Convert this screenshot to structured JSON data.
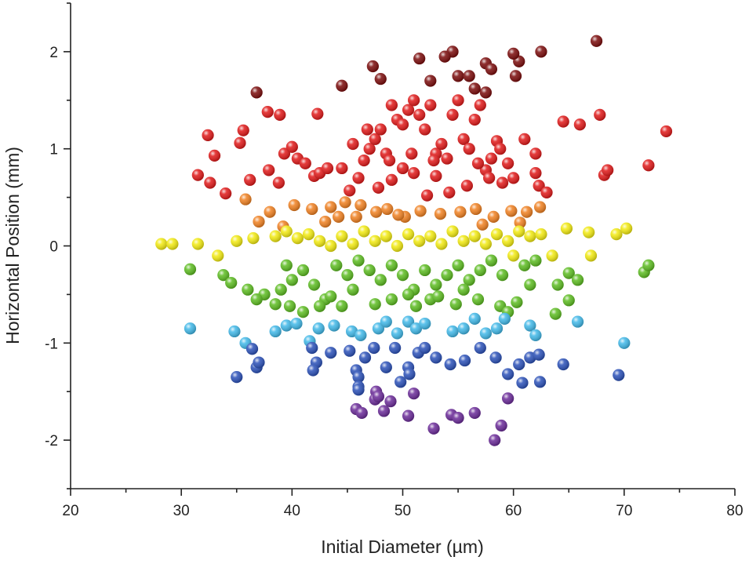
{
  "chart_data": {
    "type": "scatter",
    "title": "",
    "xlabel": "Initial Diameter (µm)",
    "ylabel": "Horizontal Position (mm)",
    "xlim": [
      20,
      80
    ],
    "ylim": [
      -2.5,
      2.5
    ],
    "x_ticks": [
      20,
      30,
      40,
      50,
      60,
      70,
      80
    ],
    "y_ticks": [
      -2,
      -1,
      0,
      1,
      2
    ],
    "x_tick_labels": [
      "20",
      "30",
      "40",
      "50",
      "60",
      "70",
      "80"
    ],
    "y_tick_labels": [
      "-2",
      "-1",
      "0",
      "1",
      "2"
    ],
    "grid": false,
    "legend": "none",
    "color_encoding": "point color follows horizontal position (purple at -2 mm through blue, green, yellow at 0, orange, red, to dark red at +2 mm)",
    "colors": {
      "dark_red": "#7a0a0a",
      "red": "#e01818",
      "orange": "#f08020",
      "yellow": "#f2ea10",
      "green": "#5cbc20",
      "cyan": "#40b8e8",
      "blue": "#2a50b8",
      "purple": "#6a2a98"
    },
    "points": [
      [
        67.5,
        2.11
      ],
      [
        62.5,
        2.0
      ],
      [
        60.5,
        1.9
      ],
      [
        60.0,
        1.98
      ],
      [
        54.5,
        2.0
      ],
      [
        53.8,
        1.95
      ],
      [
        51.5,
        1.93
      ],
      [
        47.3,
        1.85
      ],
      [
        44.5,
        1.65
      ],
      [
        48.0,
        1.72
      ],
      [
        36.8,
        1.58
      ],
      [
        57.5,
        1.88
      ],
      [
        58.0,
        1.82
      ],
      [
        55.0,
        1.75
      ],
      [
        56.0,
        1.75
      ],
      [
        60.2,
        1.75
      ],
      [
        57.5,
        1.58
      ],
      [
        56.5,
        1.62
      ],
      [
        52.5,
        1.7
      ],
      [
        42.3,
        1.36
      ],
      [
        38.9,
        1.35
      ],
      [
        37.8,
        1.38
      ],
      [
        32.4,
        1.14
      ],
      [
        33.0,
        0.93
      ],
      [
        35.6,
        1.19
      ],
      [
        35.3,
        1.06
      ],
      [
        31.5,
        0.73
      ],
      [
        32.6,
        0.65
      ],
      [
        36.2,
        0.68
      ],
      [
        37.9,
        0.78
      ],
      [
        38.8,
        0.65
      ],
      [
        39.3,
        0.95
      ],
      [
        40.0,
        1.02
      ],
      [
        40.5,
        0.9
      ],
      [
        41.2,
        0.85
      ],
      [
        42.0,
        0.72
      ],
      [
        42.5,
        0.75
      ],
      [
        43.2,
        0.8
      ],
      [
        44.5,
        0.8
      ],
      [
        45.2,
        0.57
      ],
      [
        46.0,
        0.7
      ],
      [
        46.5,
        0.88
      ],
      [
        47.0,
        1.0
      ],
      [
        47.5,
        1.1
      ],
      [
        48.0,
        1.2
      ],
      [
        48.5,
        0.95
      ],
      [
        49.0,
        1.45
      ],
      [
        49.5,
        1.3
      ],
      [
        50.0,
        1.25
      ],
      [
        50.5,
        1.4
      ],
      [
        51.0,
        1.5
      ],
      [
        51.5,
        1.35
      ],
      [
        52.0,
        1.2
      ],
      [
        52.5,
        1.45
      ],
      [
        53.0,
        0.95
      ],
      [
        53.5,
        1.05
      ],
      [
        54.0,
        0.9
      ],
      [
        54.5,
        1.35
      ],
      [
        55.0,
        1.5
      ],
      [
        55.5,
        1.1
      ],
      [
        56.0,
        1.0
      ],
      [
        56.5,
        1.3
      ],
      [
        57.0,
        1.45
      ],
      [
        57.5,
        0.78
      ],
      [
        58.5,
        1.08
      ],
      [
        59.0,
        0.65
      ],
      [
        60.0,
        0.7
      ],
      [
        61.0,
        1.1
      ],
      [
        62.0,
        0.95
      ],
      [
        64.5,
        1.28
      ],
      [
        66.0,
        1.25
      ],
      [
        67.8,
        1.35
      ],
      [
        68.2,
        0.73
      ],
      [
        68.5,
        0.78
      ],
      [
        72.2,
        0.83
      ],
      [
        73.8,
        1.18
      ],
      [
        62.0,
        0.75
      ],
      [
        62.3,
        0.62
      ],
      [
        58.0,
        0.9
      ],
      [
        59.5,
        0.85
      ],
      [
        45.5,
        1.05
      ],
      [
        50.0,
        0.8
      ],
      [
        51.0,
        0.75
      ],
      [
        49.0,
        0.68
      ],
      [
        47.8,
        0.6
      ],
      [
        55.8,
        0.62
      ],
      [
        54.2,
        0.55
      ],
      [
        52.2,
        0.52
      ],
      [
        53.0,
        0.72
      ],
      [
        46.8,
        1.2
      ],
      [
        48.8,
        0.88
      ],
      [
        50.8,
        0.95
      ],
      [
        52.8,
        0.88
      ],
      [
        56.8,
        0.85
      ],
      [
        57.8,
        0.7
      ],
      [
        58.8,
        1.0
      ],
      [
        34.0,
        0.54
      ],
      [
        35.8,
        0.48
      ],
      [
        38.0,
        0.35
      ],
      [
        40.2,
        0.42
      ],
      [
        41.8,
        0.38
      ],
      [
        43.5,
        0.4
      ],
      [
        44.8,
        0.45
      ],
      [
        46.2,
        0.42
      ],
      [
        47.6,
        0.35
      ],
      [
        48.6,
        0.38
      ],
      [
        50.2,
        0.3
      ],
      [
        51.6,
        0.36
      ],
      [
        53.4,
        0.33
      ],
      [
        55.2,
        0.35
      ],
      [
        56.6,
        0.38
      ],
      [
        58.2,
        0.3
      ],
      [
        59.8,
        0.36
      ],
      [
        61.2,
        0.35
      ],
      [
        62.4,
        0.4
      ],
      [
        63.0,
        0.55
      ],
      [
        43.0,
        0.25
      ],
      [
        39.2,
        0.2
      ],
      [
        44.2,
        0.3
      ],
      [
        49.6,
        0.32
      ],
      [
        57.2,
        0.22
      ],
      [
        60.6,
        0.24
      ],
      [
        37.0,
        0.25
      ],
      [
        45.8,
        0.3
      ],
      [
        28.2,
        0.02
      ],
      [
        29.2,
        0.02
      ],
      [
        31.5,
        0.02
      ],
      [
        35.0,
        0.05
      ],
      [
        36.5,
        0.08
      ],
      [
        38.5,
        0.1
      ],
      [
        39.5,
        0.15
      ],
      [
        40.5,
        0.08
      ],
      [
        41.5,
        0.12
      ],
      [
        42.5,
        0.05
      ],
      [
        43.5,
        0.0
      ],
      [
        44.5,
        0.1
      ],
      [
        45.5,
        0.02
      ],
      [
        46.5,
        0.15
      ],
      [
        47.5,
        0.05
      ],
      [
        48.5,
        0.1
      ],
      [
        49.5,
        0.0
      ],
      [
        50.5,
        0.12
      ],
      [
        51.5,
        0.05
      ],
      [
        52.5,
        0.1
      ],
      [
        53.5,
        0.02
      ],
      [
        54.5,
        0.15
      ],
      [
        55.5,
        0.05
      ],
      [
        56.5,
        0.1
      ],
      [
        57.5,
        0.02
      ],
      [
        58.5,
        0.12
      ],
      [
        59.5,
        0.05
      ],
      [
        60.5,
        0.15
      ],
      [
        61.5,
        0.1
      ],
      [
        62.5,
        0.12
      ],
      [
        64.8,
        0.18
      ],
      [
        66.8,
        0.14
      ],
      [
        69.3,
        0.12
      ],
      [
        70.2,
        0.18
      ],
      [
        33.3,
        -0.1
      ],
      [
        30.8,
        -0.24
      ],
      [
        33.8,
        -0.3
      ],
      [
        34.5,
        -0.38
      ],
      [
        36.0,
        -0.45
      ],
      [
        37.5,
        -0.5
      ],
      [
        39.0,
        -0.45
      ],
      [
        40.0,
        -0.35
      ],
      [
        41.0,
        -0.25
      ],
      [
        42.0,
        -0.4
      ],
      [
        43.0,
        -0.55
      ],
      [
        44.0,
        -0.2
      ],
      [
        45.0,
        -0.3
      ],
      [
        46.0,
        -0.15
      ],
      [
        47.0,
        -0.25
      ],
      [
        48.0,
        -0.35
      ],
      [
        49.0,
        -0.2
      ],
      [
        50.0,
        -0.3
      ],
      [
        51.0,
        -0.45
      ],
      [
        52.0,
        -0.25
      ],
      [
        53.0,
        -0.4
      ],
      [
        54.0,
        -0.3
      ],
      [
        55.0,
        -0.2
      ],
      [
        56.0,
        -0.35
      ],
      [
        57.0,
        -0.25
      ],
      [
        58.0,
        -0.15
      ],
      [
        59.0,
        -0.3
      ],
      [
        60.0,
        -0.1
      ],
      [
        61.0,
        -0.2
      ],
      [
        62.0,
        -0.15
      ],
      [
        63.5,
        -0.1
      ],
      [
        64.0,
        -0.4
      ],
      [
        65.0,
        -0.28
      ],
      [
        65.8,
        -0.35
      ],
      [
        67.0,
        -0.1
      ],
      [
        71.8,
        -0.27
      ],
      [
        72.2,
        -0.2
      ],
      [
        39.5,
        -0.2
      ],
      [
        45.5,
        -0.45
      ],
      [
        50.5,
        -0.5
      ],
      [
        52.5,
        -0.55
      ],
      [
        55.5,
        -0.45
      ],
      [
        36.8,
        -0.55
      ],
      [
        38.5,
        -0.6
      ],
      [
        39.8,
        -0.62
      ],
      [
        41.0,
        -0.68
      ],
      [
        42.5,
        -0.62
      ],
      [
        43.5,
        -0.52
      ],
      [
        44.5,
        -0.62
      ],
      [
        47.5,
        -0.6
      ],
      [
        49.0,
        -0.55
      ],
      [
        51.2,
        -0.62
      ],
      [
        53.2,
        -0.52
      ],
      [
        54.8,
        -0.6
      ],
      [
        56.8,
        -0.55
      ],
      [
        58.8,
        -0.62
      ],
      [
        59.5,
        -0.68
      ],
      [
        60.3,
        -0.58
      ],
      [
        61.5,
        -0.4
      ],
      [
        65.0,
        -0.56
      ],
      [
        30.8,
        -0.85
      ],
      [
        34.8,
        -0.88
      ],
      [
        35.8,
        -1.0
      ],
      [
        36.4,
        -1.06
      ],
      [
        38.5,
        -0.88
      ],
      [
        39.5,
        -0.82
      ],
      [
        40.4,
        -0.8
      ],
      [
        41.6,
        -0.98
      ],
      [
        42.4,
        -0.85
      ],
      [
        43.8,
        -0.82
      ],
      [
        45.4,
        -0.88
      ],
      [
        46.2,
        -0.92
      ],
      [
        47.8,
        -0.85
      ],
      [
        48.5,
        -0.78
      ],
      [
        49.5,
        -0.9
      ],
      [
        50.5,
        -0.78
      ],
      [
        51.2,
        -0.85
      ],
      [
        52.0,
        -0.8
      ],
      [
        54.5,
        -0.88
      ],
      [
        55.5,
        -0.85
      ],
      [
        56.5,
        -0.75
      ],
      [
        57.5,
        -0.9
      ],
      [
        58.5,
        -0.85
      ],
      [
        59.2,
        -0.75
      ],
      [
        61.5,
        -0.82
      ],
      [
        62.0,
        -0.92
      ],
      [
        63.8,
        -0.7
      ],
      [
        65.8,
        -0.78
      ],
      [
        70.0,
        -1.0
      ],
      [
        35.0,
        -1.35
      ],
      [
        36.8,
        -1.25
      ],
      [
        37.0,
        -1.2
      ],
      [
        41.8,
        -1.05
      ],
      [
        42.2,
        -1.2
      ],
      [
        41.9,
        -1.28
      ],
      [
        43.5,
        -1.1
      ],
      [
        45.2,
        -1.08
      ],
      [
        45.8,
        -1.28
      ],
      [
        46.0,
        -1.35
      ],
      [
        46.6,
        -1.15
      ],
      [
        47.4,
        -1.05
      ],
      [
        48.5,
        -1.25
      ],
      [
        49.3,
        -1.05
      ],
      [
        49.8,
        -1.4
      ],
      [
        50.5,
        -1.25
      ],
      [
        50.6,
        -1.32
      ],
      [
        51.4,
        -1.1
      ],
      [
        52.0,
        -1.05
      ],
      [
        53.0,
        -1.15
      ],
      [
        54.3,
        -1.22
      ],
      [
        55.6,
        -1.18
      ],
      [
        57.0,
        -1.05
      ],
      [
        58.4,
        -1.15
      ],
      [
        59.5,
        -1.32
      ],
      [
        60.5,
        -1.22
      ],
      [
        61.5,
        -1.15
      ],
      [
        62.3,
        -1.12
      ],
      [
        64.5,
        -1.22
      ],
      [
        69.5,
        -1.33
      ],
      [
        46.0,
        -1.45
      ],
      [
        46.0,
        -1.48
      ],
      [
        47.6,
        -1.5
      ],
      [
        51.0,
        -1.52
      ],
      [
        60.8,
        -1.41
      ],
      [
        62.4,
        -1.4
      ],
      [
        45.8,
        -1.68
      ],
      [
        46.3,
        -1.72
      ],
      [
        47.5,
        -1.58
      ],
      [
        47.8,
        -1.55
      ],
      [
        48.3,
        -1.7
      ],
      [
        48.9,
        -1.6
      ],
      [
        50.5,
        -1.75
      ],
      [
        52.8,
        -1.88
      ],
      [
        54.4,
        -1.74
      ],
      [
        55.0,
        -1.77
      ],
      [
        56.5,
        -1.72
      ],
      [
        58.3,
        -2.0
      ],
      [
        58.9,
        -1.85
      ],
      [
        59.5,
        -1.57
      ]
    ]
  }
}
